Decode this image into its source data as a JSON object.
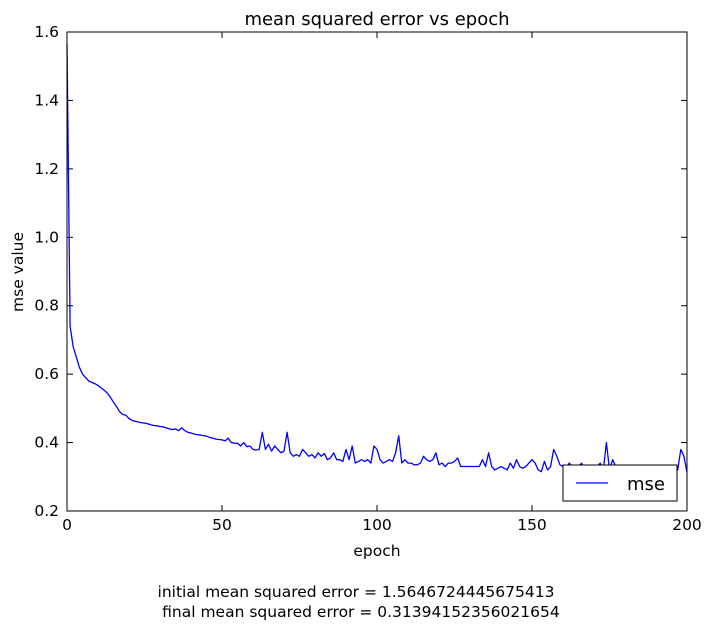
{
  "chart_data": {
    "type": "line",
    "title": "mean squared error vs epoch",
    "xlabel": "epoch",
    "ylabel": "mse value",
    "xlim": [
      0,
      200
    ],
    "ylim": [
      0.2,
      1.6
    ],
    "xticks": [
      0,
      50,
      100,
      150,
      200
    ],
    "xtick_labels": [
      "0",
      "50",
      "100",
      "150",
      "200"
    ],
    "yticks": [
      0.2,
      0.4,
      0.6,
      0.8,
      1.0,
      1.2,
      1.4,
      1.6
    ],
    "ytick_labels": [
      "0.2",
      "0.4",
      "0.6",
      "0.8",
      "1.0",
      "1.2",
      "1.4",
      "1.6"
    ],
    "grid": false,
    "legend_position": "lower-right",
    "series": [
      {
        "name": "mse",
        "color": "#0000ff",
        "x": [
          0,
          1,
          2,
          3,
          4,
          5,
          6,
          7,
          8,
          9,
          10,
          11,
          12,
          13,
          14,
          15,
          16,
          17,
          18,
          19,
          20,
          21,
          22,
          23,
          24,
          25,
          26,
          27,
          28,
          29,
          30,
          31,
          32,
          33,
          34,
          35,
          36,
          37,
          38,
          39,
          40,
          41,
          42,
          43,
          44,
          45,
          46,
          47,
          48,
          49,
          50,
          51,
          52,
          53,
          54,
          55,
          56,
          57,
          58,
          59,
          60,
          61,
          62,
          63,
          64,
          65,
          66,
          67,
          68,
          69,
          70,
          71,
          72,
          73,
          74,
          75,
          76,
          77,
          78,
          79,
          80,
          81,
          82,
          83,
          84,
          85,
          86,
          87,
          88,
          89,
          90,
          91,
          92,
          93,
          94,
          95,
          96,
          97,
          98,
          99,
          100,
          101,
          102,
          103,
          104,
          105,
          106,
          107,
          108,
          109,
          110,
          111,
          112,
          113,
          114,
          115,
          116,
          117,
          118,
          119,
          120,
          121,
          122,
          123,
          124,
          125,
          126,
          127,
          128,
          129,
          130,
          131,
          132,
          133,
          134,
          135,
          136,
          137,
          138,
          139,
          140,
          141,
          142,
          143,
          144,
          145,
          146,
          147,
          148,
          149,
          150,
          151,
          152,
          153,
          154,
          155,
          156,
          157,
          158,
          159,
          160,
          161,
          162,
          163,
          164,
          165,
          166,
          167,
          168,
          169,
          170,
          171,
          172,
          173,
          174,
          175,
          176,
          177,
          178,
          179,
          180,
          181,
          182,
          183,
          184,
          185,
          186,
          187,
          188,
          189,
          190,
          191,
          192,
          193,
          194,
          195,
          196,
          197,
          198,
          199,
          200
        ],
        "y": [
          1.565,
          0.74,
          0.68,
          0.65,
          0.62,
          0.6,
          0.59,
          0.58,
          0.576,
          0.572,
          0.567,
          0.56,
          0.553,
          0.545,
          0.532,
          0.518,
          0.505,
          0.49,
          0.482,
          0.48,
          0.47,
          0.465,
          0.462,
          0.46,
          0.458,
          0.457,
          0.455,
          0.452,
          0.45,
          0.449,
          0.447,
          0.446,
          0.443,
          0.44,
          0.438,
          0.44,
          0.435,
          0.443,
          0.435,
          0.43,
          0.428,
          0.425,
          0.423,
          0.422,
          0.42,
          0.419,
          0.415,
          0.413,
          0.41,
          0.409,
          0.408,
          0.405,
          0.413,
          0.4,
          0.398,
          0.398,
          0.39,
          0.4,
          0.388,
          0.39,
          0.38,
          0.378,
          0.38,
          0.43,
          0.38,
          0.395,
          0.375,
          0.39,
          0.38,
          0.37,
          0.375,
          0.43,
          0.37,
          0.36,
          0.365,
          0.36,
          0.38,
          0.37,
          0.36,
          0.365,
          0.355,
          0.37,
          0.36,
          0.368,
          0.35,
          0.355,
          0.37,
          0.35,
          0.35,
          0.345,
          0.38,
          0.35,
          0.39,
          0.34,
          0.345,
          0.35,
          0.345,
          0.35,
          0.34,
          0.39,
          0.38,
          0.35,
          0.34,
          0.345,
          0.35,
          0.345,
          0.37,
          0.42,
          0.34,
          0.35,
          0.34,
          0.34,
          0.335,
          0.335,
          0.34,
          0.36,
          0.35,
          0.345,
          0.35,
          0.37,
          0.335,
          0.34,
          0.33,
          0.34,
          0.34,
          0.345,
          0.355,
          0.33,
          0.33,
          0.33,
          0.33,
          0.33,
          0.33,
          0.33,
          0.35,
          0.33,
          0.37,
          0.33,
          0.32,
          0.325,
          0.33,
          0.325,
          0.32,
          0.34,
          0.325,
          0.35,
          0.33,
          0.325,
          0.33,
          0.34,
          0.35,
          0.34,
          0.32,
          0.315,
          0.345,
          0.32,
          0.33,
          0.38,
          0.36,
          0.335,
          0.33,
          0.325,
          0.34,
          0.33,
          0.32,
          0.33,
          0.34,
          0.32,
          0.33,
          0.325,
          0.33,
          0.33,
          0.34,
          0.32,
          0.4,
          0.32,
          0.35,
          0.33,
          0.32,
          0.325,
          0.33,
          0.32,
          0.33,
          0.32,
          0.33,
          0.32,
          0.32,
          0.32,
          0.33,
          0.32,
          0.33,
          0.32,
          0.325,
          0.32,
          0.33,
          0.32,
          0.33,
          0.32,
          0.38,
          0.36,
          0.314
        ]
      }
    ],
    "caption": {
      "line1": "initial mean squared error = 1.5646724445675413",
      "line2": "  final mean squared error = 0.31394152356021654"
    }
  }
}
